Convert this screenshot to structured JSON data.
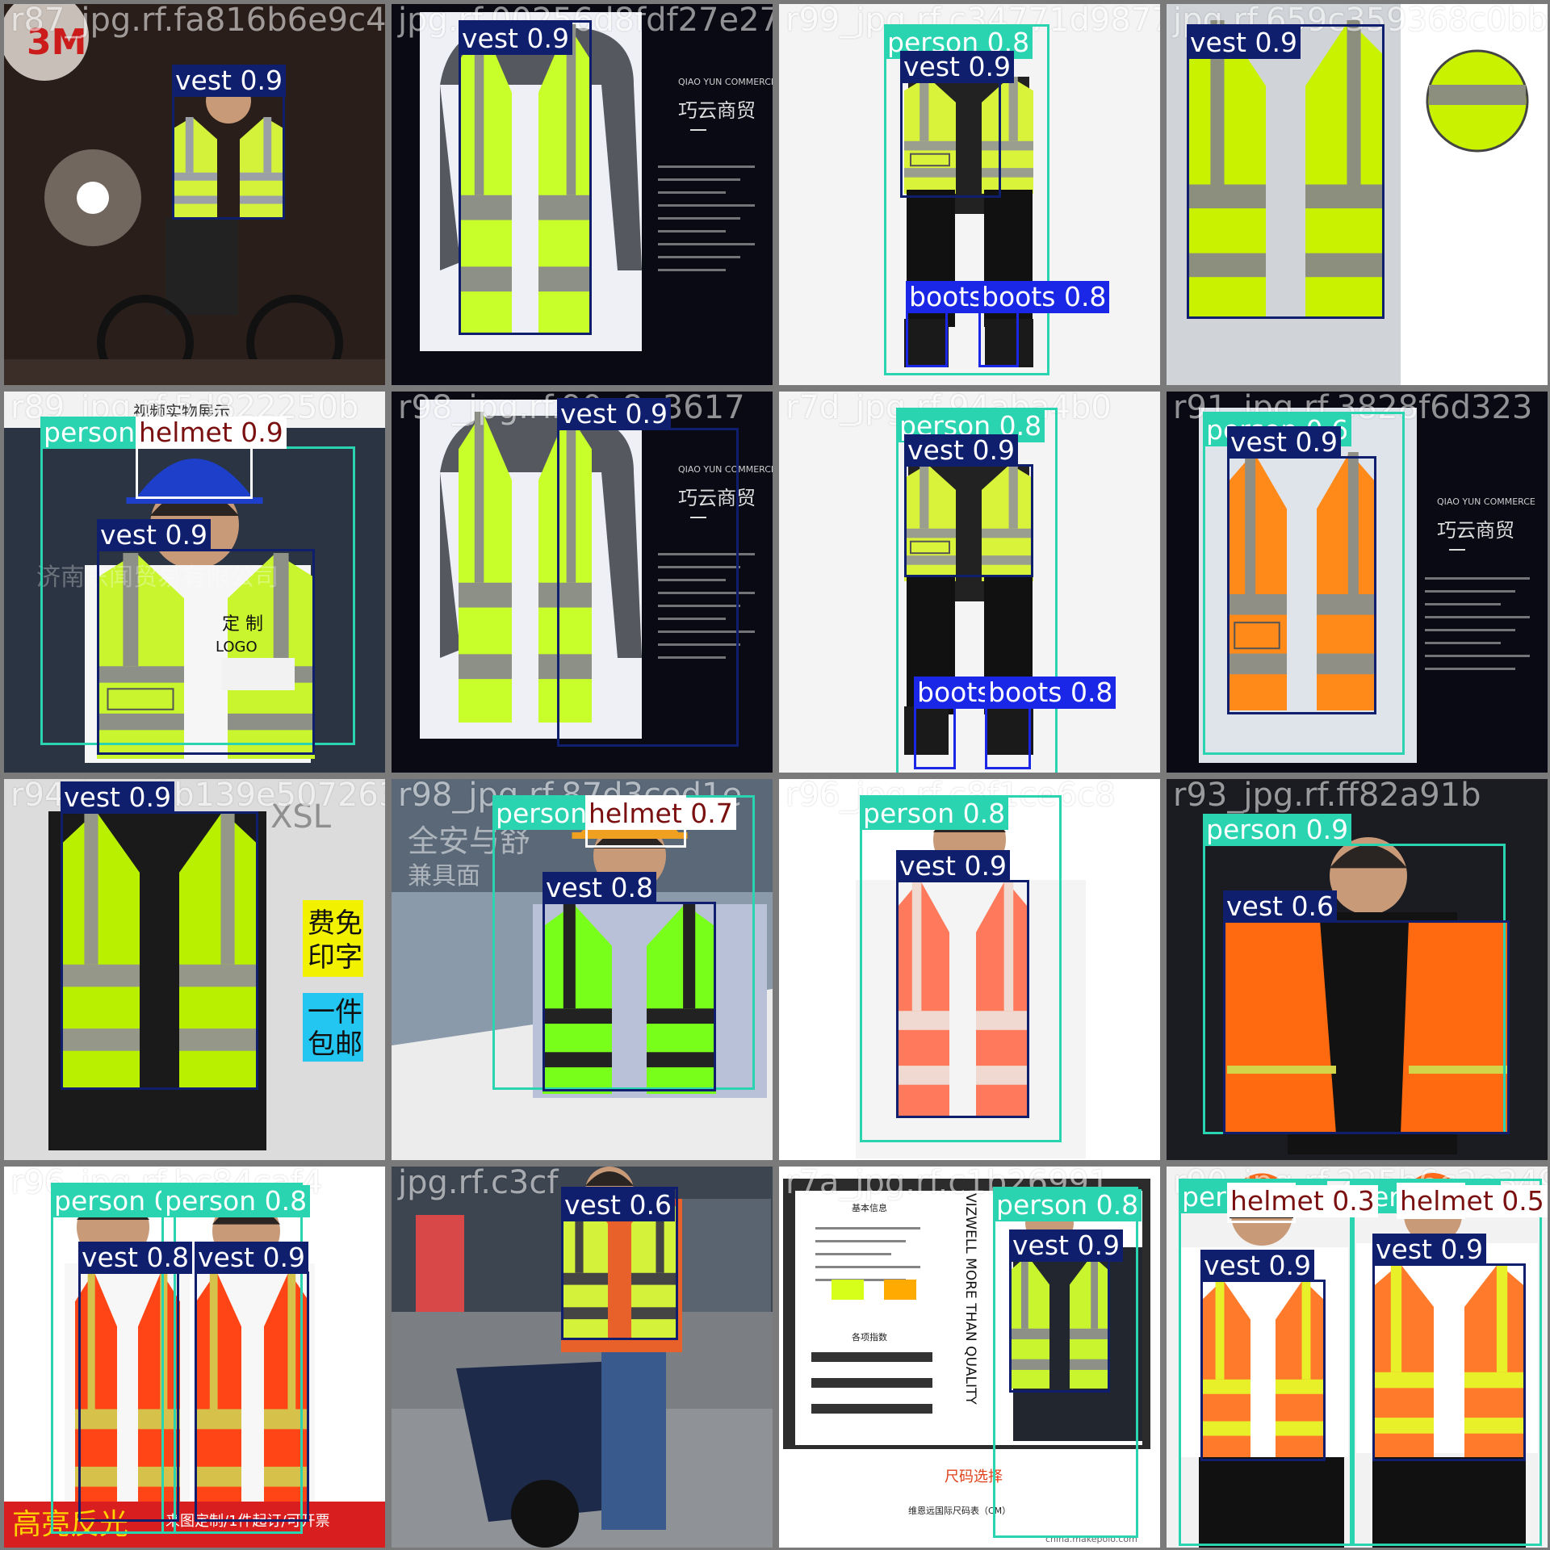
{
  "mosaic": {
    "columns": 4,
    "rows": 4,
    "classes": {
      "person": {
        "box": "#2ad4b0",
        "label_bg": "#2ad4b0",
        "label_fg": "#ffffff"
      },
      "vest": {
        "box": "#0f1f6e",
        "label_bg": "#0f1f6e",
        "label_fg": "#ffffff"
      },
      "boots": {
        "box": "#1a27e6",
        "label_bg": "#1a27e6",
        "label_fg": "#ffffff"
      },
      "helmet": {
        "box": "#ffffff",
        "label_bg": "#ffffff",
        "label_fg": "#7a1010"
      }
    },
    "tiles": [
      {
        "file": "r87_jpg.rf.fa816b6e9c456f7898",
        "photo": "night-cyclist",
        "labels": [
          "vest 0.9"
        ]
      },
      {
        "file": "jpg.rf.00256d8fdf27e273d9",
        "photo": "vest-on-dark-panel",
        "labels": [
          "vest 0.9"
        ]
      },
      {
        "file": "r99_jpg.rf.c34771d9877953a9",
        "photo": "standing-man-white",
        "labels": [
          "person 0.8",
          "vest 0.9",
          "boots",
          "boots 0.8"
        ]
      },
      {
        "file": "jpg.rf.659c359368c0bb",
        "photo": "yellow-vest-closeup",
        "labels": [
          "vest 0.9"
        ]
      },
      {
        "file": "r89_jpg.rf.5d822250b",
        "photo": "man-blue-helmet",
        "labels": [
          "person 0.8",
          "helmet 0.9",
          "vest 0.9"
        ]
      },
      {
        "file": "r98_jpg.rf.90a8e3617",
        "photo": "vest-on-dark-panel",
        "labels": [
          "vest 0.9"
        ]
      },
      {
        "file": "r7d_jpg.rf.94aba4b0",
        "photo": "standing-man-white",
        "labels": [
          "person 0.8",
          "vest 0.9",
          "boots",
          "boots 0.8"
        ]
      },
      {
        "file": "r91_jpg.rf.3828f6d323",
        "photo": "orange-vest-panel",
        "labels": [
          "person 0.6",
          "vest 0.9"
        ]
      },
      {
        "file": "r94_jpg.rf.b139e5072639",
        "photo": "yellow-vest-xsl",
        "labels": [
          "vest 0.9"
        ]
      },
      {
        "file": "r98_jpg.rf.87d3ced1e",
        "photo": "man-orange-helmet",
        "labels": [
          "person 0.7",
          "helmet 0.7",
          "vest 0.8"
        ]
      },
      {
        "file": "r96_jpg.rf.c8f1ce6c8",
        "photo": "man-coral-vest",
        "labels": [
          "person 0.8",
          "vest 0.9"
        ]
      },
      {
        "file": "r93_jpg.rf.ff82a91b",
        "photo": "man-orange-open-vest",
        "labels": [
          "person 0.9",
          "vest 0.6"
        ]
      },
      {
        "file": "r96_jpg.rf.bc84caf4",
        "photo": "couple-red-vests",
        "labels": [
          "person 0.8",
          "person 0.8",
          "vest 0.8",
          "vest 0.9"
        ]
      },
      {
        "file": "jpg.rf.c3cf",
        "photo": "motorcycle-rider",
        "labels": [
          "vest 0.6"
        ]
      },
      {
        "file": "r7a_jpg.rf.c1b26991",
        "photo": "spec-sheet-vest",
        "labels": [
          "person 0.8",
          "vest 0.9"
        ]
      },
      {
        "file": "r90_jpg.rf.225b6c2e34930",
        "photo": "two-orange-vests",
        "labels": [
          "person 0.8",
          "person 0.9",
          "helmet 0.3",
          "helmet 0.5",
          "vest 0.9",
          "vest 0.9"
        ]
      }
    ]
  }
}
